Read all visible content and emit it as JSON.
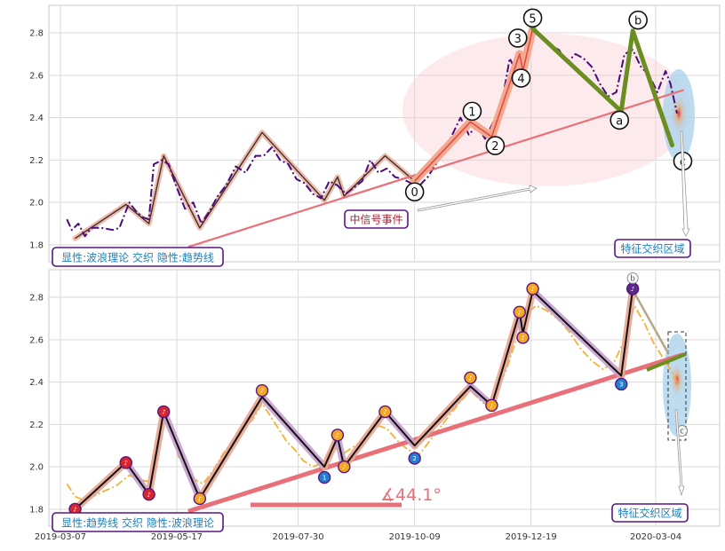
{
  "chart_data": [
    {
      "type": "line",
      "panel": "top",
      "yticks": [
        1.8,
        2.0,
        2.2,
        2.4,
        2.6,
        2.8
      ],
      "ylim": [
        1.72,
        2.93
      ],
      "xlim": [
        "2019-02-28",
        "2020-04-12"
      ],
      "grid": true,
      "price": [
        [
          "2019-03-11",
          1.92
        ],
        [
          "2019-03-14",
          1.87
        ],
        [
          "2019-03-18",
          1.9
        ],
        [
          "2019-03-22",
          1.84
        ],
        [
          "2019-03-26",
          1.88
        ],
        [
          "2019-04-01",
          1.88
        ],
        [
          "2019-04-08",
          1.87
        ],
        [
          "2019-04-12",
          1.88
        ],
        [
          "2019-04-18",
          2.0
        ],
        [
          "2019-04-22",
          1.96
        ],
        [
          "2019-04-26",
          1.93
        ],
        [
          "2019-04-30",
          1.92
        ],
        [
          "2019-05-03",
          2.18
        ],
        [
          "2019-05-08",
          2.2
        ],
        [
          "2019-05-12",
          2.18
        ],
        [
          "2019-05-17",
          2.07
        ],
        [
          "2019-05-22",
          1.97
        ],
        [
          "2019-05-27",
          2.0
        ],
        [
          "2019-06-01",
          1.9
        ],
        [
          "2019-06-06",
          1.96
        ],
        [
          "2019-06-11",
          2.03
        ],
        [
          "2019-06-16",
          2.08
        ],
        [
          "2019-06-22",
          2.17
        ],
        [
          "2019-06-28",
          2.14
        ],
        [
          "2019-07-04",
          2.22
        ],
        [
          "2019-07-09",
          2.22
        ],
        [
          "2019-07-14",
          2.26
        ],
        [
          "2019-07-19",
          2.2
        ],
        [
          "2019-07-24",
          2.18
        ],
        [
          "2019-07-29",
          2.11
        ],
        [
          "2019-08-03",
          2.09
        ],
        [
          "2019-08-08",
          2.04
        ],
        [
          "2019-08-13",
          2.02
        ],
        [
          "2019-08-18",
          2.1
        ],
        [
          "2019-08-23",
          2.08
        ],
        [
          "2019-08-28",
          2.04
        ],
        [
          "2019-09-02",
          2.07
        ],
        [
          "2019-09-07",
          2.1
        ],
        [
          "2019-09-12",
          2.2
        ],
        [
          "2019-09-17",
          2.14
        ],
        [
          "2019-09-22",
          2.16
        ],
        [
          "2019-09-27",
          2.12
        ],
        [
          "2019-10-02",
          2.11
        ],
        [
          "2019-10-07",
          2.09
        ],
        [
          "2019-10-12",
          2.08
        ],
        [
          "2019-10-17",
          2.12
        ],
        [
          "2019-10-22",
          2.18
        ],
        [
          "2019-10-27",
          2.24
        ],
        [
          "2019-11-01",
          2.32
        ],
        [
          "2019-11-06",
          2.4
        ],
        [
          "2019-11-11",
          2.32
        ],
        [
          "2019-11-16",
          2.36
        ],
        [
          "2019-11-21",
          2.3
        ],
        [
          "2019-11-26",
          2.38
        ],
        [
          "2019-12-01",
          2.46
        ],
        [
          "2019-12-06",
          2.68
        ],
        [
          "2019-12-11",
          2.6
        ],
        [
          "2019-12-16",
          2.64
        ],
        [
          "2019-12-21",
          2.8
        ],
        [
          "2019-12-26",
          2.78
        ],
        [
          "2019-12-31",
          2.74
        ],
        [
          "2020-01-05",
          2.72
        ],
        [
          "2020-01-10",
          2.66
        ],
        [
          "2020-01-15",
          2.7
        ],
        [
          "2020-01-20",
          2.68
        ],
        [
          "2020-01-25",
          2.64
        ],
        [
          "2020-01-30",
          2.56
        ],
        [
          "2020-02-04",
          2.5
        ],
        [
          "2020-02-09",
          2.52
        ],
        [
          "2020-02-14",
          2.7
        ],
        [
          "2020-02-19",
          2.72
        ],
        [
          "2020-02-24",
          2.64
        ],
        [
          "2020-02-29",
          2.6
        ],
        [
          "2020-03-05",
          2.52
        ],
        [
          "2020-03-10",
          2.62
        ],
        [
          "2020-03-13",
          2.56
        ],
        [
          "2020-03-17",
          2.42
        ]
      ],
      "trend_line": [
        [
          "2019-05-24",
          1.79
        ],
        [
          "2020-03-21",
          2.53
        ]
      ],
      "wave_path": [
        [
          "2019-03-16",
          1.83
        ],
        [
          "2019-04-16",
          1.99
        ],
        [
          "2019-04-30",
          1.9
        ],
        [
          "2019-05-09",
          2.22
        ],
        [
          "2019-05-31",
          1.88
        ],
        [
          "2019-07-08",
          2.33
        ],
        [
          "2019-08-15",
          2.01
        ],
        [
          "2019-08-23",
          2.12
        ],
        [
          "2019-08-27",
          2.03
        ],
        [
          "2019-09-21",
          2.22
        ],
        [
          "2019-10-09",
          2.1
        ]
      ],
      "wave_labels": [
        {
          "label": "0",
          "date": "2019-10-09",
          "value": 2.1
        },
        {
          "label": "1",
          "date": "2019-11-12",
          "value": 2.38
        },
        {
          "label": "2",
          "date": "2019-11-25",
          "value": 2.31
        },
        {
          "label": "3",
          "date": "2019-12-12",
          "value": 2.7
        },
        {
          "label": "4",
          "date": "2019-12-14",
          "value": 2.62
        },
        {
          "label": "5",
          "date": "2019-12-20",
          "value": 2.82
        },
        {
          "label": "a",
          "date": "2020-02-12",
          "value": 2.43
        },
        {
          "label": "b",
          "date": "2020-02-19",
          "value": 2.81
        },
        {
          "label": "c",
          "date": "2020-03-14",
          "value": 2.27
        }
      ],
      "annotations": {
        "legend_box": "显性:波浪理论 交织 隐性:趋势线",
        "signal_event": "中信号事件",
        "feature_zone": "特征交织区域"
      }
    },
    {
      "type": "line",
      "panel": "bottom",
      "yticks": [
        1.8,
        2.0,
        2.2,
        2.4,
        2.6,
        2.8
      ],
      "ylim": [
        1.72,
        2.93
      ],
      "xlim": [
        "2019-02-28",
        "2020-04-12"
      ],
      "xticks": [
        "2019-03-07",
        "2019-05-17",
        "2019-07-30",
        "2019-10-09",
        "2019-12-19",
        "2020-03-04"
      ],
      "grid": true,
      "price": [
        [
          "2019-03-11",
          1.92
        ],
        [
          "2019-03-16",
          1.86
        ],
        [
          "2019-03-22",
          1.84
        ],
        [
          "2019-04-01",
          1.88
        ],
        [
          "2019-04-10",
          1.91
        ],
        [
          "2019-04-18",
          1.96
        ],
        [
          "2019-04-24",
          1.94
        ],
        [
          "2019-04-30",
          1.93
        ],
        [
          "2019-05-05",
          2.1
        ],
        [
          "2019-05-09",
          2.22
        ],
        [
          "2019-05-14",
          2.19
        ],
        [
          "2019-05-18",
          2.05
        ],
        [
          "2019-05-23",
          1.98
        ],
        [
          "2019-05-28",
          1.94
        ],
        [
          "2019-06-02",
          1.92
        ],
        [
          "2019-06-08",
          1.98
        ],
        [
          "2019-06-14",
          2.06
        ],
        [
          "2019-06-20",
          2.12
        ],
        [
          "2019-06-26",
          2.18
        ],
        [
          "2019-07-02",
          2.22
        ],
        [
          "2019-07-08",
          2.3
        ],
        [
          "2019-07-13",
          2.24
        ],
        [
          "2019-07-18",
          2.18
        ],
        [
          "2019-07-23",
          2.12
        ],
        [
          "2019-07-28",
          2.08
        ],
        [
          "2019-08-02",
          2.03
        ],
        [
          "2019-08-08",
          2.0
        ],
        [
          "2019-08-14",
          2.02
        ],
        [
          "2019-08-20",
          2.1
        ],
        [
          "2019-08-26",
          2.06
        ],
        [
          "2019-09-01",
          2.09
        ],
        [
          "2019-09-08",
          2.13
        ],
        [
          "2019-09-15",
          2.2
        ],
        [
          "2019-09-22",
          2.18
        ],
        [
          "2019-09-29",
          2.12
        ],
        [
          "2019-10-05",
          2.08
        ],
        [
          "2019-10-12",
          2.06
        ],
        [
          "2019-10-20",
          2.14
        ],
        [
          "2019-10-28",
          2.22
        ],
        [
          "2019-11-05",
          2.3
        ],
        [
          "2019-11-12",
          2.36
        ],
        [
          "2019-11-20",
          2.3
        ],
        [
          "2019-11-27",
          2.34
        ],
        [
          "2019-12-04",
          2.46
        ],
        [
          "2019-12-10",
          2.6
        ],
        [
          "2019-12-16",
          2.72
        ],
        [
          "2019-12-22",
          2.76
        ],
        [
          "2019-12-28",
          2.74
        ],
        [
          "2020-01-04",
          2.7
        ],
        [
          "2020-01-11",
          2.64
        ],
        [
          "2020-01-18",
          2.56
        ],
        [
          "2020-01-25",
          2.5
        ],
        [
          "2020-02-01",
          2.46
        ],
        [
          "2020-02-08",
          2.5
        ],
        [
          "2020-02-14",
          2.6
        ],
        [
          "2020-02-20",
          2.76
        ],
        [
          "2020-02-26",
          2.68
        ],
        [
          "2020-03-03",
          2.58
        ],
        [
          "2020-03-08",
          2.52
        ],
        [
          "2020-03-13",
          2.46
        ],
        [
          "2020-03-17",
          2.4
        ]
      ],
      "trend_line": [
        [
          "2019-05-24",
          1.79
        ],
        [
          "2020-03-21",
          2.53
        ]
      ],
      "angle_label": "∡44.1°",
      "zigzag": [
        [
          "2019-03-16",
          1.8
        ],
        [
          "2019-04-16",
          2.02
        ],
        [
          "2019-04-30",
          1.87
        ],
        [
          "2019-05-09",
          2.26
        ],
        [
          "2019-05-31",
          1.85
        ],
        [
          "2019-07-08",
          2.33
        ],
        [
          "2019-08-15",
          2.0
        ],
        [
          "2019-08-23",
          2.14
        ],
        [
          "2019-08-27",
          2.0
        ],
        [
          "2019-09-21",
          2.26
        ],
        [
          "2019-10-09",
          2.1
        ],
        [
          "2019-11-12",
          2.38
        ],
        [
          "2019-11-25",
          2.29
        ],
        [
          "2019-12-12",
          2.73
        ],
        [
          "2019-12-14",
          2.63
        ],
        [
          "2019-12-20",
          2.83
        ],
        [
          "2020-02-12",
          2.43
        ],
        [
          "2020-02-19",
          2.84
        ]
      ],
      "markers": [
        {
          "date": "2019-03-16",
          "value": 1.8,
          "type": "red"
        },
        {
          "date": "2019-04-16",
          "value": 2.02,
          "type": "red"
        },
        {
          "date": "2019-04-30",
          "value": 1.87,
          "type": "red"
        },
        {
          "date": "2019-05-09",
          "value": 2.26,
          "type": "red"
        },
        {
          "date": "2019-05-31",
          "value": 1.85,
          "type": "orange"
        },
        {
          "date": "2019-07-08",
          "value": 2.36,
          "type": "orange"
        },
        {
          "date": "2019-08-15",
          "value": 1.95,
          "type": "blue",
          "label": "1"
        },
        {
          "date": "2019-08-23",
          "value": 2.15,
          "type": "orange"
        },
        {
          "date": "2019-08-27",
          "value": 2.0,
          "type": "orange"
        },
        {
          "date": "2019-09-21",
          "value": 2.26,
          "type": "orange"
        },
        {
          "date": "2019-10-09",
          "value": 2.04,
          "type": "blue",
          "label": "2"
        },
        {
          "date": "2019-11-12",
          "value": 2.42,
          "type": "orange"
        },
        {
          "date": "2019-11-25",
          "value": 2.29,
          "type": "orange"
        },
        {
          "date": "2019-12-12",
          "value": 2.73,
          "type": "orange"
        },
        {
          "date": "2019-12-14",
          "value": 2.61,
          "type": "orange"
        },
        {
          "date": "2019-12-20",
          "value": 2.84,
          "type": "orange"
        },
        {
          "date": "2020-02-12",
          "value": 2.39,
          "type": "blue",
          "label": "3"
        },
        {
          "date": "2020-02-19",
          "value": 2.84,
          "type": "purple"
        }
      ],
      "top_label": {
        "label": "b",
        "date": "2020-02-19",
        "value": 2.89
      },
      "right_label": {
        "label": "c",
        "date": "2020-03-20",
        "value": 2.17
      },
      "annotations": {
        "legend_box": "显性:趋势线 交织 隐性:波浪理论",
        "feature_zone": "特征交织区域"
      }
    }
  ]
}
